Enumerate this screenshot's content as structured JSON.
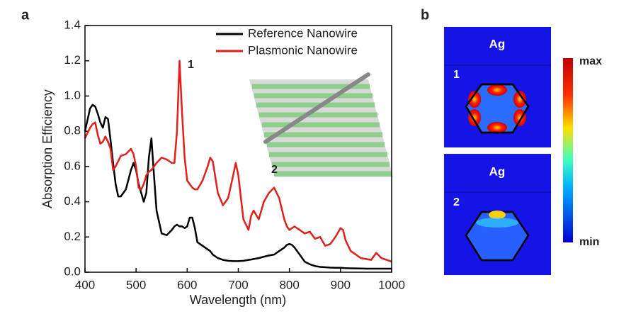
{
  "panel_labels": [
    "a",
    "b"
  ],
  "chart_data": {
    "type": "line",
    "x_label": "Wavelength (nm)",
    "y_label": "Absorption Efficiency",
    "xlim": [
      400,
      1000
    ],
    "xticks": [
      400,
      500,
      600,
      700,
      800,
      900,
      1000
    ],
    "ylim": [
      0,
      1.4
    ],
    "yticks": [
      {
        "value": 0,
        "label": "0.0"
      },
      0.2,
      0.4,
      0.6,
      0.8,
      {
        "value": 1,
        "label": "1.0"
      },
      1.2,
      1.4
    ],
    "legend": "upper right",
    "annotations": [
      "1",
      "2"
    ],
    "x": [
      400,
      410,
      415,
      420,
      425,
      430,
      435,
      440,
      445,
      450,
      455,
      460,
      465,
      470,
      480,
      490,
      495,
      500,
      505,
      510,
      515,
      520,
      525,
      530,
      535,
      540,
      550,
      560,
      570,
      575,
      580,
      585,
      590,
      595,
      600,
      605,
      610,
      615,
      620,
      630,
      640,
      645,
      650,
      660,
      670,
      680,
      690,
      695,
      700,
      710,
      720,
      725,
      730,
      740,
      750,
      760,
      770,
      780,
      790,
      795,
      800,
      805,
      810,
      815,
      820,
      830,
      840,
      850,
      860,
      870,
      880,
      890,
      900,
      905,
      910,
      920,
      940,
      950,
      960,
      970,
      980,
      990,
      1000
    ],
    "series": [
      {
        "name": "Reference Nanowire",
        "color": "#000000",
        "values": [
          0.8,
          0.93,
          0.95,
          0.94,
          0.9,
          0.85,
          0.82,
          0.88,
          0.87,
          0.75,
          0.62,
          0.5,
          0.43,
          0.43,
          0.47,
          0.58,
          0.62,
          0.58,
          0.5,
          0.45,
          0.4,
          0.45,
          0.65,
          0.76,
          0.55,
          0.35,
          0.22,
          0.21,
          0.24,
          0.26,
          0.27,
          0.26,
          0.26,
          0.25,
          0.26,
          0.31,
          0.31,
          0.25,
          0.17,
          0.15,
          0.13,
          0.12,
          0.1,
          0.08,
          0.07,
          0.065,
          0.063,
          0.063,
          0.063,
          0.065,
          0.07,
          0.072,
          0.075,
          0.08,
          0.088,
          0.095,
          0.1,
          0.12,
          0.14,
          0.155,
          0.16,
          0.155,
          0.14,
          0.12,
          0.1,
          0.06,
          0.045,
          0.035,
          0.03,
          0.028,
          0.026,
          0.025,
          0.025,
          0.024,
          0.023,
          0.022,
          0.021,
          0.02,
          0.02,
          0.02,
          0.02,
          0.02,
          0.02
        ]
      },
      {
        "name": "Plasmonic Nanowire",
        "color": "#e0201b",
        "values": [
          0.76,
          0.82,
          0.84,
          0.85,
          0.78,
          0.73,
          0.74,
          0.77,
          0.74,
          0.7,
          0.58,
          0.6,
          0.63,
          0.66,
          0.67,
          0.7,
          0.67,
          0.6,
          0.48,
          0.47,
          0.5,
          0.55,
          0.57,
          0.58,
          0.6,
          0.62,
          0.65,
          0.64,
          0.62,
          0.62,
          0.8,
          1.2,
          0.9,
          0.65,
          0.52,
          0.5,
          0.48,
          0.47,
          0.47,
          0.52,
          0.6,
          0.65,
          0.63,
          0.45,
          0.38,
          0.42,
          0.55,
          0.62,
          0.55,
          0.3,
          0.24,
          0.32,
          0.35,
          0.3,
          0.4,
          0.45,
          0.48,
          0.42,
          0.3,
          0.26,
          0.24,
          0.25,
          0.26,
          0.25,
          0.24,
          0.22,
          0.23,
          0.19,
          0.2,
          0.15,
          0.16,
          0.2,
          0.25,
          0.24,
          0.18,
          0.12,
          0.08,
          0.075,
          0.07,
          0.11,
          0.08,
          0.07,
          0.06
        ]
      }
    ]
  },
  "panel_b": {
    "panels": [
      {
        "material": "Ag",
        "label": "1"
      },
      {
        "material": "Ag",
        "label": "2"
      }
    ],
    "colorbar": {
      "max": "max",
      "min": "min"
    }
  }
}
